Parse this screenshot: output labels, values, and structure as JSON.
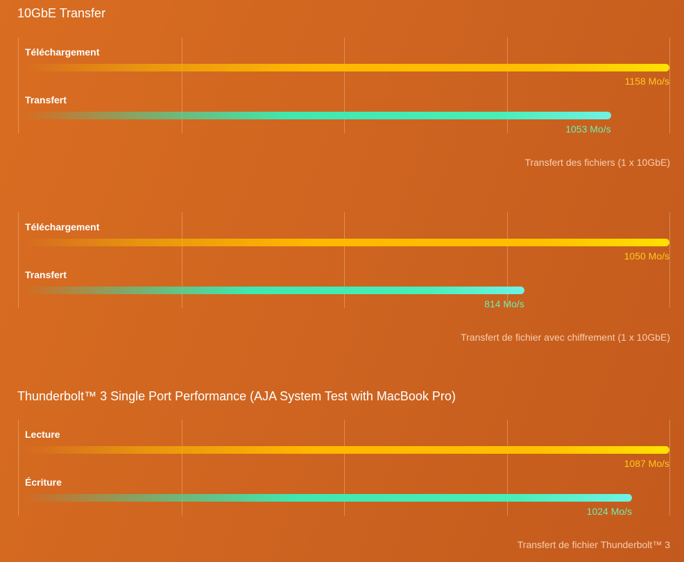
{
  "colors": {
    "background": "#cf6520",
    "bar_primary": "#ffc000",
    "bar_secondary": "#46eeb8",
    "value_primary": "#ffc81e",
    "value_secondary": "#6cf0b0"
  },
  "sections": [
    {
      "title": "10GbE Transfer"
    },
    {
      "title": ""
    },
    {
      "title": "Thunderbolt™ 3 Single Port Performance (AJA System Test with MacBook Pro)"
    }
  ],
  "chart_data": [
    {
      "type": "bar",
      "orientation": "horizontal",
      "categories": [
        "Téléchargement",
        "Transfert"
      ],
      "values": [
        1158,
        1053
      ],
      "value_labels": [
        "1158 Mo/s",
        "1053 Mo/s"
      ],
      "unit": "Mo/s",
      "xlim": [
        0,
        1158
      ],
      "caption": "Transfert des fichiers (1 x 10GbE)",
      "grid": true
    },
    {
      "type": "bar",
      "orientation": "horizontal",
      "categories": [
        "Téléchargement",
        "Transfert"
      ],
      "values": [
        1050,
        814
      ],
      "value_labels": [
        "1050 Mo/s",
        "814 Mo/s"
      ],
      "unit": "Mo/s",
      "xlim": [
        0,
        1050
      ],
      "caption": "Transfert de fichier avec chiffrement (1 x 10GbE)",
      "grid": true
    },
    {
      "type": "bar",
      "orientation": "horizontal",
      "categories": [
        "Lecture",
        "Écriture"
      ],
      "values": [
        1087,
        1024
      ],
      "value_labels": [
        "1087 Mo/s",
        "1024 Mo/s"
      ],
      "unit": "Mo/s",
      "xlim": [
        0,
        1087
      ],
      "caption": "Transfert de fichier Thunderbolt™ 3",
      "grid": true
    }
  ]
}
